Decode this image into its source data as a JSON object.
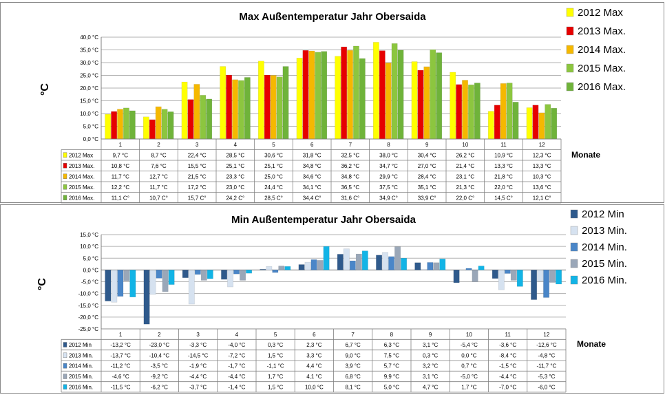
{
  "chart_data": [
    {
      "type": "bar",
      "title": "Max Außentemperatur Jahr Obersaida",
      "ylabel": "°C",
      "xlabel": "Monate",
      "ylim": [
        0,
        40
      ],
      "yticks": [
        "0,0 °C",
        "5,0 °C",
        "10,0 °C",
        "15,0 °C",
        "20,0 °C",
        "25,0 °C",
        "30,0 °C",
        "35,0 °C",
        "40,0 °C"
      ],
      "categories": [
        "1",
        "2",
        "3",
        "4",
        "5",
        "6",
        "7",
        "8",
        "9",
        "10",
        "11",
        "12"
      ],
      "grid": true,
      "legend_position": "right",
      "series": [
        {
          "name": "2012 Max",
          "color": "#ffff00",
          "values": [
            9.7,
            8.7,
            22.4,
            28.5,
            30.6,
            31.8,
            32.5,
            38.0,
            30.4,
            26.2,
            10.9,
            12.3
          ],
          "labels": [
            "9,7 °C",
            "8,7 °C",
            "22,4 °C",
            "28,5 °C",
            "30,6 °C",
            "31,8 °C",
            "32,5 °C",
            "38,0 °C",
            "30,4 °C",
            "26,2 °C",
            "10,9 °C",
            "12,3 °C"
          ]
        },
        {
          "name": "2013 Max.",
          "color": "#e60000",
          "values": [
            10.8,
            7.6,
            15.5,
            25.1,
            25.1,
            34.8,
            36.2,
            34.7,
            27.0,
            21.4,
            13.3,
            13.3
          ],
          "labels": [
            "10,8 °C",
            "7,6 °C",
            "15,5 °C",
            "25,1 °C",
            "25,1 °C",
            "34,8 °C",
            "36,2 °C",
            "34,7 °C",
            "27,0 °C",
            "21,4 °C",
            "13,3 °C",
            "13,3 °C"
          ]
        },
        {
          "name": "2014 Max.",
          "color": "#f5b800",
          "values": [
            11.7,
            12.7,
            21.5,
            23.3,
            25.0,
            34.6,
            34.8,
            29.9,
            28.4,
            23.1,
            21.8,
            10.3
          ],
          "labels": [
            "11,7 °C",
            "12,7 °C",
            "21,5 °C",
            "23,3 °C",
            "25,0 °C",
            "34,6 °C",
            "34,8 °C",
            "29,9 °C",
            "28,4 °C",
            "23,1 °C",
            "21,8 °C",
            "10,3 °C"
          ]
        },
        {
          "name": "2015 Max.",
          "color": "#8cc63f",
          "values": [
            12.2,
            11.7,
            17.2,
            23.0,
            24.4,
            34.1,
            36.5,
            37.5,
            35.1,
            21.3,
            22.0,
            13.6
          ],
          "labels": [
            "12,2 °C",
            "11,7 °C",
            "17,2 °C",
            "23,0 °C",
            "24,4 °C",
            "34,1 °C",
            "36,5 °C",
            "37,5 °C",
            "35,1 °C",
            "21,3 °C",
            "22,0 °C",
            "13,6 °C"
          ]
        },
        {
          "name": "2016 Max.",
          "color": "#6fb33a",
          "values": [
            11.1,
            10.7,
            15.7,
            24.2,
            28.5,
            34.4,
            31.6,
            34.9,
            33.9,
            22.0,
            14.5,
            12.1
          ],
          "labels": [
            "11,1 C°",
            "10,7 C°",
            "15,7 C°",
            "24,2 C°",
            "28,5 C°",
            "34,4 C°",
            "31,6 C°",
            "34,9 C°",
            "33,9 C°",
            "22,0 C°",
            "14,5 C°",
            "12,1 C°"
          ]
        }
      ]
    },
    {
      "type": "bar",
      "title": "Min  Außentemperatur Jahr Obersaida",
      "ylabel": "°C",
      "xlabel": "Monate",
      "ylim": [
        -25,
        15
      ],
      "yticks": [
        "-25,0 °C",
        "-20,0 °C",
        "-15,0 °C",
        "-10,0 °C",
        "-5,0 °C",
        "0,0 °C",
        "5,0 °C",
        "10,0 °C",
        "15,0 °C"
      ],
      "categories": [
        "1",
        "2",
        "3",
        "4",
        "5",
        "6",
        "7",
        "8",
        "9",
        "10",
        "11",
        "12"
      ],
      "grid": true,
      "legend_position": "right",
      "series": [
        {
          "name": "2012 Min",
          "color": "#2f5a8c",
          "values": [
            -13.2,
            -23.0,
            -3.3,
            -4.0,
            0.3,
            2.3,
            6.7,
            6.3,
            3.1,
            -5.4,
            -3.6,
            -12.6
          ],
          "labels": [
            "-13,2 °C",
            "-23,0 °C",
            "-3,3 °C",
            "-4,0 °C",
            "0,3 °C",
            "2,3 °C",
            "6,7 °C",
            "6,3 °C",
            "3,1 °C",
            "-5,4 °C",
            "-3,6 °C",
            "-12,6 °C"
          ]
        },
        {
          "name": "2013 Min.",
          "color": "#d6e2f0",
          "values": [
            -13.7,
            -10.4,
            -14.5,
            -7.2,
            1.5,
            3.3,
            9.0,
            7.5,
            0.3,
            0.0,
            -8.4,
            -4.8
          ],
          "labels": [
            "-13,7 °C",
            "-10,4 °C",
            "-14,5 °C",
            "-7,2 °C",
            "1,5 °C",
            "3,3 °C",
            "9,0 °C",
            "7,5 °C",
            "0,3 °C",
            "0,0 °C",
            "-8,4 °C",
            "-4,8 °C"
          ]
        },
        {
          "name": "2014 Min.",
          "color": "#4a86c8",
          "values": [
            -11.2,
            -3.5,
            -1.9,
            -1.7,
            -1.1,
            4.4,
            3.9,
            5.7,
            3.2,
            0.7,
            -1.5,
            -11.7
          ],
          "labels": [
            "-11,2 °C",
            "-3,5 °C",
            "-1,9 °C",
            "-1,7 °C",
            "-1,1 °C",
            "4,4 °C",
            "3,9 °C",
            "5,7 °C",
            "3,2 °C",
            "0,7 °C",
            "-1,5 °C",
            "-11,7 °C"
          ]
        },
        {
          "name": "2015 Min.",
          "color": "#9aa7b8",
          "values": [
            -4.6,
            -9.2,
            -4.4,
            -4.4,
            1.7,
            4.1,
            6.8,
            9.9,
            3.1,
            -5.0,
            -4.4,
            -5.3
          ],
          "labels": [
            "-4,6 °C",
            "-9,2 °C",
            "-4,4 °C",
            "-4,4 °C",
            "1,7 °C",
            "4,1 °C",
            "6,8 °C",
            "9,9 °C",
            "3,1 °C",
            "-5,0 °C",
            "-4,4 °C",
            "-5,3 °C"
          ]
        },
        {
          "name": "2016 Min.",
          "color": "#12b4e6",
          "values": [
            -11.5,
            -6.2,
            -3.7,
            -1.4,
            1.5,
            10.0,
            8.1,
            5.0,
            4.7,
            1.7,
            -7.0,
            -6.0
          ],
          "labels": [
            "-11,5 °C",
            "-6,2 °C",
            "-3,7 °C",
            "-1,4 °C",
            "1,5 °C",
            "10,0 °C",
            "8,1 °C",
            "5,0 °C",
            "4,7 °C",
            "1,7 °C",
            "-7,0 °C",
            "-6,0 °C"
          ]
        }
      ]
    }
  ]
}
